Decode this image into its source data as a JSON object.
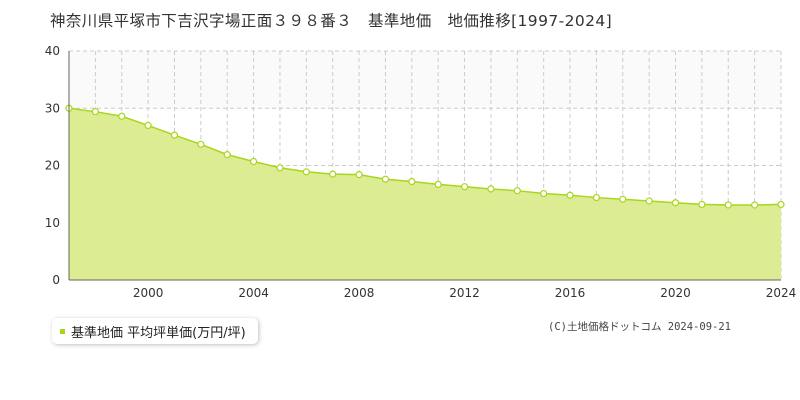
{
  "page": {
    "title": "神奈川県平塚市下吉沢字場正面３９８番３　基準地価　地価推移[1997-2024]",
    "credit": "(C)土地価格ドットコム 2024-09-21"
  },
  "legend": {
    "label": "基準地価 平均坪単価(万円/坪)",
    "color": "#a8d61a"
  },
  "chart_data": {
    "type": "area",
    "x": [
      1997,
      1998,
      1999,
      2000,
      2001,
      2002,
      2003,
      2004,
      2005,
      2006,
      2007,
      2008,
      2009,
      2010,
      2011,
      2012,
      2013,
      2014,
      2015,
      2016,
      2017,
      2018,
      2019,
      2020,
      2021,
      2022,
      2023,
      2024
    ],
    "series": [
      {
        "name": "基準地価 平均坪単価(万円/坪)",
        "values": [
          30.0,
          29.4,
          28.6,
          27.0,
          25.3,
          23.7,
          21.9,
          20.7,
          19.6,
          18.9,
          18.5,
          18.4,
          17.6,
          17.2,
          16.7,
          16.3,
          15.9,
          15.6,
          15.1,
          14.8,
          14.4,
          14.1,
          13.8,
          13.5,
          13.2,
          13.1,
          13.1,
          13.2
        ],
        "color": "#a8d61a",
        "fill": "#dbec93"
      }
    ],
    "xticks": [
      2000,
      2004,
      2008,
      2012,
      2016,
      2020,
      2024
    ],
    "yticks": [
      0,
      10,
      20,
      30,
      40
    ],
    "xlim": [
      1997,
      2024
    ],
    "ylim": [
      0,
      40
    ],
    "grid": true,
    "legend_position": "bottom-left"
  }
}
